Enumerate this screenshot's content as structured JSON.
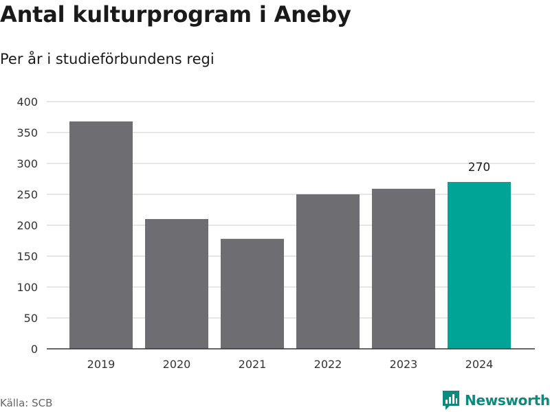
{
  "title": "Antal kulturprogram i Aneby",
  "subtitle": "Per år i studieförbundens regi",
  "source": "Källa: SCB",
  "brand": {
    "name": "Newsworthy",
    "icon": "newsworthy-logo-icon"
  },
  "colors": {
    "bar": "#6e6d72",
    "highlight": "#00a497",
    "grid": "#dedede",
    "axis": "#333333",
    "brand": "#0c8a7d"
  },
  "chart_data": {
    "type": "bar",
    "categories": [
      "2019",
      "2020",
      "2021",
      "2022",
      "2023",
      "2024"
    ],
    "values": [
      368,
      210,
      178,
      250,
      259,
      270
    ],
    "highlight_index": 5,
    "data_labels": [
      {
        "index": 5,
        "text": "270"
      }
    ],
    "ylim": [
      0,
      400
    ],
    "yticks": [
      0,
      50,
      100,
      150,
      200,
      250,
      300,
      350,
      400
    ],
    "grid": true,
    "legend": "none",
    "xlabel": "",
    "ylabel": ""
  }
}
